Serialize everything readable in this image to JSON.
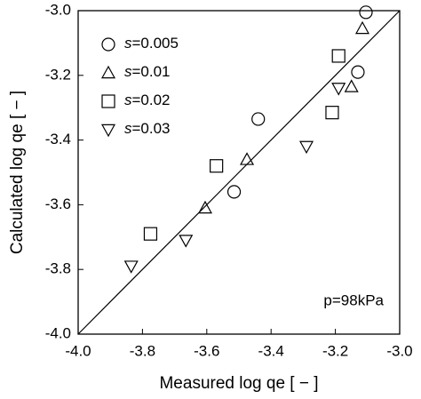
{
  "chart_data": {
    "type": "scatter",
    "x_label": "Measured log qe [ − ]",
    "y_label": "Calculated log qe [ − ]",
    "annotation": "p=98kPa",
    "xlim": [
      -4.0,
      -3.0
    ],
    "ylim": [
      -4.0,
      -3.0
    ],
    "xticks": [
      {
        "value": -4.0,
        "label": "-4.0"
      },
      -3.8,
      -3.6,
      -3.4,
      -3.2,
      {
        "value": -3.0,
        "label": "-3.0"
      }
    ],
    "yticks": [
      {
        "value": -4.0,
        "label": "-4.0"
      },
      -3.8,
      -3.6,
      -3.4,
      -3.2,
      {
        "value": -3.0,
        "label": "-3.0"
      }
    ],
    "legend": "upper left",
    "series": [
      {
        "name": "s=0.005",
        "color": "#000000",
        "marker": "circle",
        "x": [
          -3.105,
          -3.13,
          -3.44,
          -3.515
        ],
        "values": [
          -3.005,
          -3.19,
          -3.335,
          -3.56
        ]
      },
      {
        "name": "s=0.01",
        "color": "#000000",
        "marker": "triangle-up",
        "x": [
          -3.116,
          -3.15,
          -3.475,
          -3.605
        ],
        "values": [
          -3.055,
          -3.235,
          -3.46,
          -3.61
        ]
      },
      {
        "name": "s=0.02",
        "color": "#000000",
        "marker": "square",
        "x": [
          -3.19,
          -3.21,
          -3.57,
          -3.775
        ],
        "values": [
          -3.14,
          -3.315,
          -3.48,
          -3.69
        ]
      },
      {
        "name": "s=0.03",
        "color": "#000000",
        "marker": "triangle-down",
        "x": [
          -3.19,
          -3.29,
          -3.665,
          -3.835
        ],
        "values": [
          -3.24,
          -3.42,
          -3.71,
          -3.79
        ]
      }
    ]
  }
}
